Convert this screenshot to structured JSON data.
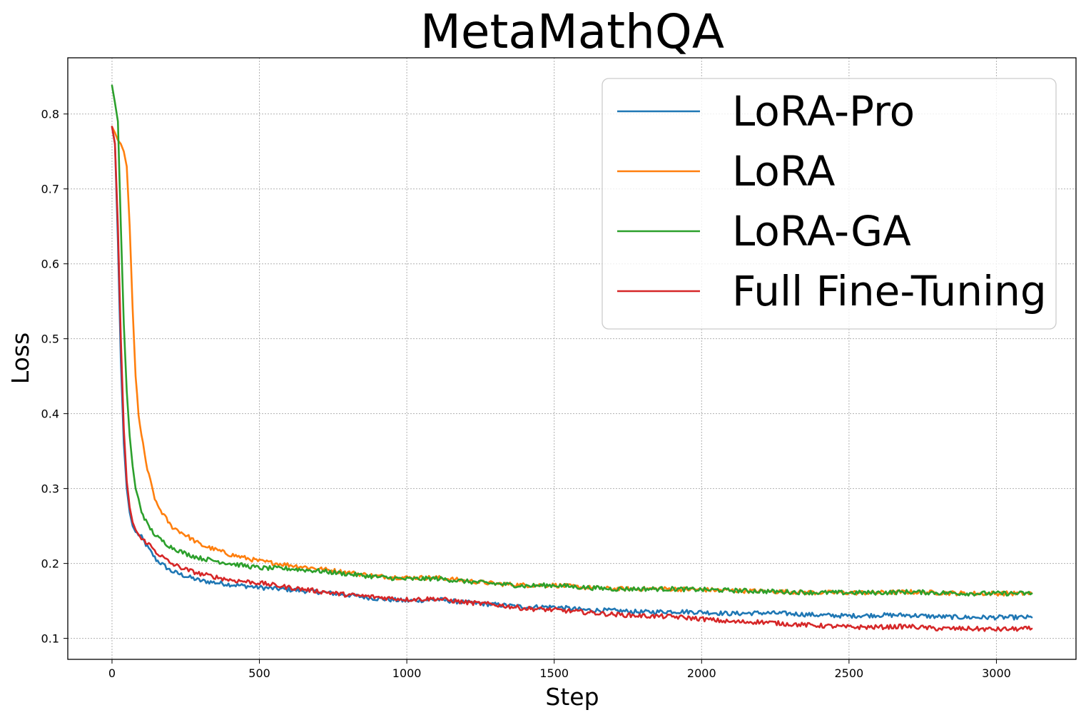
{
  "chart_data": {
    "type": "line",
    "title": "MetaMathQA",
    "xlabel": "Step",
    "ylabel": "Loss",
    "xlim": [
      -150,
      3270
    ],
    "ylim": [
      0.072,
      0.875
    ],
    "xticks": [
      0,
      500,
      1000,
      1500,
      2000,
      2500,
      3000
    ],
    "yticks": [
      0.1,
      0.2,
      0.3,
      0.4,
      0.5,
      0.6,
      0.7,
      0.8
    ],
    "xtick_labels": [
      "0",
      "500",
      "1000",
      "1500",
      "2000",
      "2500",
      "3000"
    ],
    "ytick_labels": [
      "0.1",
      "0.2",
      "0.3",
      "0.4",
      "0.5",
      "0.6",
      "0.7",
      "0.8"
    ],
    "grid": true,
    "legend_position": "top-right",
    "series": [
      {
        "name": "LoRA-Pro",
        "color": "#1f77b4",
        "x": [
          0,
          10,
          20,
          30,
          40,
          50,
          60,
          70,
          80,
          100,
          120,
          150,
          200,
          250,
          300,
          400,
          500,
          600,
          700,
          800,
          900,
          1000,
          1100,
          1200,
          1300,
          1400,
          1500,
          1600,
          1700,
          1800,
          1900,
          2000,
          2100,
          2200,
          2300,
          2400,
          2500,
          2600,
          2700,
          2800,
          2900,
          3000,
          3120
        ],
        "values": [
          0.783,
          0.76,
          0.63,
          0.47,
          0.36,
          0.3,
          0.268,
          0.25,
          0.242,
          0.235,
          0.222,
          0.205,
          0.19,
          0.183,
          0.177,
          0.172,
          0.168,
          0.165,
          0.162,
          0.158,
          0.153,
          0.15,
          0.152,
          0.148,
          0.145,
          0.142,
          0.142,
          0.138,
          0.137,
          0.135,
          0.136,
          0.135,
          0.133,
          0.134,
          0.133,
          0.131,
          0.13,
          0.131,
          0.131,
          0.129,
          0.128,
          0.128,
          0.128
        ]
      },
      {
        "name": "LoRA",
        "color": "#ff7f0e",
        "x": [
          0,
          10,
          20,
          30,
          40,
          50,
          60,
          70,
          80,
          90,
          100,
          120,
          150,
          200,
          250,
          300,
          400,
          500,
          600,
          700,
          800,
          900,
          1000,
          1100,
          1200,
          1300,
          1400,
          1500,
          1600,
          1700,
          1800,
          1900,
          2000,
          2100,
          2200,
          2300,
          2400,
          2500,
          2600,
          2700,
          2800,
          2900,
          3000,
          3120
        ],
        "values": [
          0.783,
          0.775,
          0.765,
          0.76,
          0.75,
          0.73,
          0.65,
          0.54,
          0.45,
          0.4,
          0.37,
          0.325,
          0.28,
          0.25,
          0.238,
          0.225,
          0.212,
          0.203,
          0.198,
          0.193,
          0.188,
          0.183,
          0.181,
          0.181,
          0.177,
          0.173,
          0.171,
          0.171,
          0.168,
          0.166,
          0.166,
          0.166,
          0.165,
          0.164,
          0.163,
          0.162,
          0.161,
          0.161,
          0.161,
          0.162,
          0.161,
          0.16,
          0.16,
          0.16
        ]
      },
      {
        "name": "LoRA-GA",
        "color": "#2ca02c",
        "x": [
          0,
          10,
          20,
          30,
          40,
          50,
          60,
          70,
          80,
          100,
          120,
          150,
          200,
          250,
          300,
          400,
          500,
          600,
          700,
          800,
          900,
          1000,
          1100,
          1200,
          1300,
          1400,
          1500,
          1600,
          1700,
          1800,
          1900,
          2000,
          2100,
          2200,
          2300,
          2400,
          2500,
          2600,
          2700,
          2800,
          2900,
          3000,
          3120
        ],
        "values": [
          0.838,
          0.815,
          0.79,
          0.65,
          0.52,
          0.43,
          0.37,
          0.33,
          0.3,
          0.27,
          0.252,
          0.236,
          0.222,
          0.213,
          0.207,
          0.2,
          0.194,
          0.193,
          0.19,
          0.186,
          0.182,
          0.179,
          0.18,
          0.176,
          0.173,
          0.17,
          0.171,
          0.168,
          0.166,
          0.166,
          0.166,
          0.165,
          0.164,
          0.163,
          0.162,
          0.161,
          0.161,
          0.161,
          0.162,
          0.161,
          0.16,
          0.16,
          0.16
        ]
      },
      {
        "name": "Full Fine-Tuning",
        "color": "#d62728",
        "x": [
          0,
          10,
          20,
          30,
          40,
          50,
          60,
          70,
          80,
          100,
          120,
          150,
          200,
          250,
          300,
          400,
          500,
          600,
          700,
          800,
          900,
          1000,
          1100,
          1200,
          1300,
          1400,
          1500,
          1600,
          1700,
          1800,
          1900,
          2000,
          2100,
          2200,
          2300,
          2400,
          2500,
          2600,
          2700,
          2800,
          2900,
          3000,
          3120
        ],
        "values": [
          0.783,
          0.76,
          0.65,
          0.5,
          0.38,
          0.31,
          0.275,
          0.255,
          0.245,
          0.232,
          0.228,
          0.215,
          0.2,
          0.192,
          0.186,
          0.178,
          0.174,
          0.168,
          0.163,
          0.158,
          0.155,
          0.152,
          0.153,
          0.148,
          0.145,
          0.14,
          0.138,
          0.135,
          0.132,
          0.13,
          0.129,
          0.126,
          0.122,
          0.122,
          0.119,
          0.117,
          0.115,
          0.115,
          0.116,
          0.113,
          0.113,
          0.112,
          0.113
        ]
      }
    ]
  }
}
